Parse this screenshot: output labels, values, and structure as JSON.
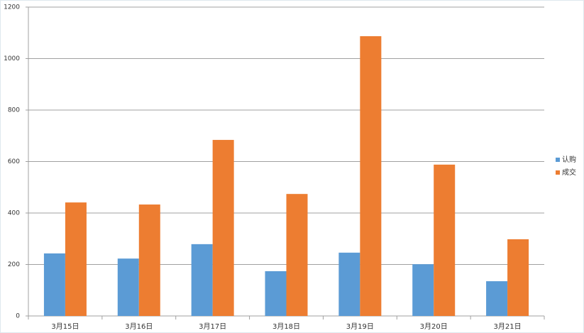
{
  "chart_data": {
    "type": "bar",
    "categories": [
      "3月15日",
      "3月16日",
      "3月17日",
      "3月18日",
      "3月19日",
      "3月20日",
      "3月21日"
    ],
    "series": [
      {
        "name": "认购",
        "color": "#5b9bd5",
        "values": [
          243,
          223,
          279,
          174,
          246,
          201,
          135
        ]
      },
      {
        "name": "成交",
        "color": "#ed7d31",
        "values": [
          441,
          433,
          684,
          474,
          1087,
          588,
          298
        ]
      }
    ],
    "ylim": [
      0,
      1200
    ],
    "yticks": [
      0,
      200,
      400,
      600,
      800,
      1000,
      1200
    ],
    "grid": true,
    "legend": "right"
  }
}
